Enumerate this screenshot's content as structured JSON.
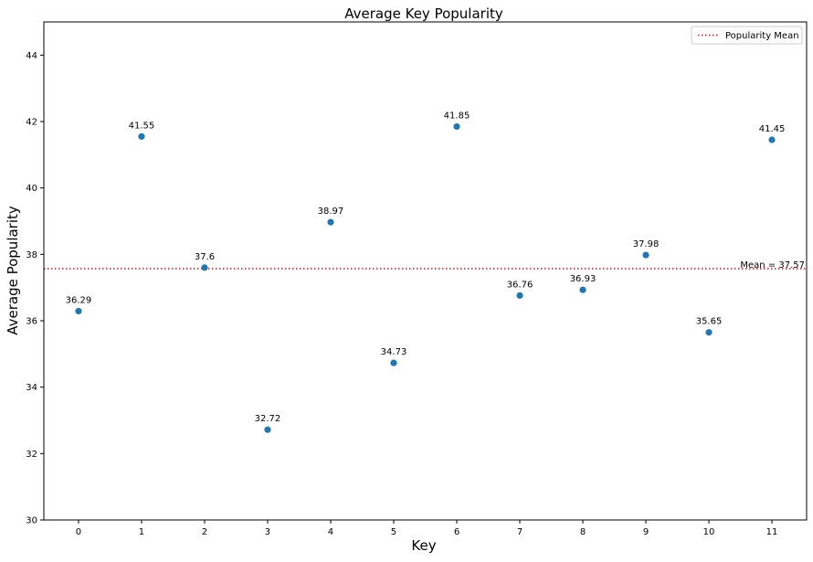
{
  "chart_data": {
    "type": "scatter",
    "title": "Average Key Popularity",
    "xlabel": "Key",
    "ylabel": "Average Popularity",
    "x": [
      0,
      1,
      2,
      3,
      4,
      5,
      6,
      7,
      8,
      9,
      10,
      11
    ],
    "y": [
      36.29,
      41.55,
      37.6,
      32.72,
      38.97,
      34.73,
      41.85,
      36.76,
      36.93,
      37.98,
      35.65,
      41.45
    ],
    "data_labels": [
      "36.29",
      "41.55",
      "37.6",
      "32.72",
      "38.97",
      "34.73",
      "41.85",
      "36.76",
      "36.93",
      "37.98",
      "35.65",
      "41.45"
    ],
    "xticks": [
      "0",
      "1",
      "2",
      "3",
      "4",
      "5",
      "6",
      "7",
      "8",
      "9",
      "10",
      "11"
    ],
    "yticks": [
      30,
      32,
      34,
      36,
      38,
      40,
      42,
      44
    ],
    "ytick_labels": [
      "30",
      "32",
      "34",
      "36",
      "38",
      "40",
      "42",
      "44"
    ],
    "xlim": [
      -0.55,
      11.55
    ],
    "ylim": [
      30,
      45
    ],
    "grid": false,
    "point_color": "#1f77b4",
    "mean_line": {
      "value": 37.57,
      "color": "#ff0000",
      "style": "dotted",
      "legend_label": "Popularity Mean",
      "annotation": "Mean = 37.57"
    },
    "legend": {
      "placement": "top-right",
      "entries": [
        "Popularity Mean"
      ]
    }
  }
}
